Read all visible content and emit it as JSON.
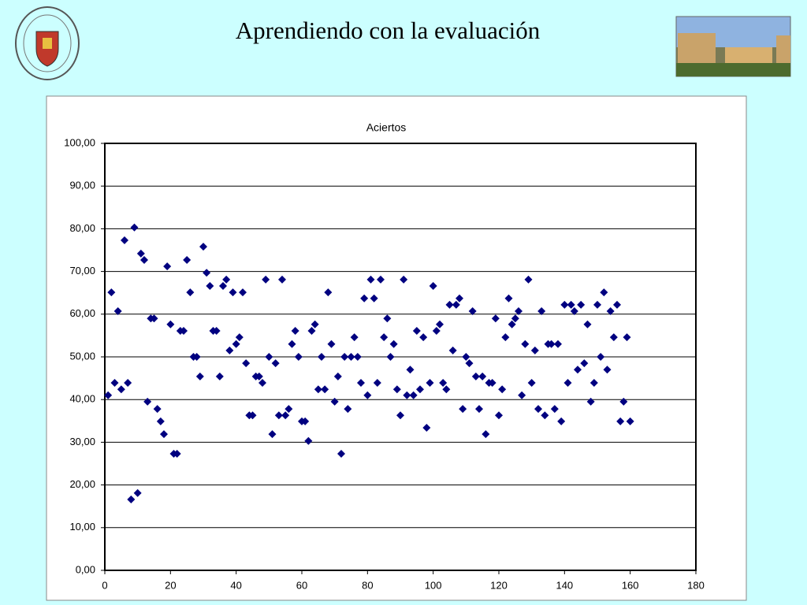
{
  "slide_title": "Aprendiendo con la evaluación",
  "chart_data": {
    "type": "scatter",
    "title": "Aciertos",
    "color": "#000080",
    "grid": true,
    "x": [
      1,
      2,
      3,
      4,
      5,
      6,
      7,
      8,
      9,
      10,
      11,
      12,
      13,
      14,
      15,
      16,
      17,
      18,
      19,
      20,
      21,
      22,
      23,
      24,
      25,
      26,
      27,
      28,
      29,
      30,
      31,
      32,
      33,
      34,
      35,
      36,
      37,
      38,
      39,
      40,
      41,
      42,
      43,
      44,
      45,
      46,
      47,
      48,
      49,
      50,
      51,
      52,
      53,
      54,
      55,
      56,
      57,
      58,
      59,
      60,
      61,
      62,
      63,
      64,
      65,
      66,
      67,
      68,
      69,
      70,
      71,
      72,
      73,
      74,
      75,
      76,
      77,
      78,
      79,
      80,
      81,
      82,
      83,
      84,
      85,
      86,
      87,
      88,
      89,
      90,
      91,
      92,
      93,
      94,
      95,
      96,
      97,
      98,
      99,
      100,
      101,
      102,
      103,
      104,
      105,
      106,
      107,
      108,
      109,
      110,
      111,
      112,
      113,
      114,
      115,
      116,
      117,
      118,
      119,
      120,
      121,
      122,
      123,
      124,
      125,
      126,
      127,
      128,
      129,
      130,
      131,
      132,
      133,
      134,
      135,
      136,
      137,
      138,
      139,
      140,
      141,
      142,
      143,
      144,
      145,
      146,
      147,
      148,
      149,
      150,
      151,
      152,
      153,
      154,
      155,
      156,
      157,
      158,
      159,
      160
    ],
    "values": [
      41.0,
      65.1,
      43.9,
      60.7,
      42.4,
      77.3,
      43.9,
      16.6,
      80.3,
      18.1,
      74.2,
      72.7,
      39.5,
      59.0,
      59.0,
      37.8,
      34.9,
      31.9,
      71.2,
      57.6,
      27.3,
      27.3,
      56.1,
      56.1,
      72.7,
      65.1,
      50.0,
      50.0,
      45.4,
      75.8,
      69.7,
      66.6,
      56.1,
      56.1,
      45.4,
      66.6,
      68.1,
      51.5,
      65.1,
      53.0,
      54.6,
      65.1,
      48.5,
      36.3,
      36.3,
      45.4,
      45.4,
      43.9,
      68.1,
      50.0,
      31.9,
      48.5,
      36.3,
      68.1,
      36.3,
      37.8,
      53.0,
      56.1,
      50.0,
      34.9,
      34.9,
      30.3,
      56.1,
      57.6,
      42.4,
      50.0,
      42.4,
      65.1,
      53.0,
      39.5,
      45.4,
      27.3,
      50.0,
      37.8,
      50.0,
      54.6,
      50.0,
      43.9,
      63.7,
      41.0,
      68.1,
      63.7,
      43.9,
      68.1,
      54.6,
      59.0,
      50.0,
      53.0,
      42.4,
      36.3,
      68.1,
      41.0,
      47.0,
      41.0,
      56.1,
      42.4,
      54.6,
      33.4,
      43.9,
      66.6,
      56.1,
      57.6,
      43.9,
      42.4,
      62.2,
      51.5,
      62.2,
      63.7,
      37.8,
      50.0,
      48.5,
      60.7,
      45.4,
      37.8,
      45.4,
      31.9,
      43.9,
      43.9,
      59.0,
      36.3,
      42.4,
      54.6,
      63.7,
      57.6,
      59.0,
      60.7,
      41.0,
      53.0,
      68.1,
      43.9,
      51.5,
      37.8,
      60.7,
      36.3,
      53.0,
      53.0,
      37.8,
      53.0,
      34.9,
      62.2,
      43.9,
      62.2,
      60.7,
      47.0,
      62.2,
      48.5,
      57.6,
      39.5,
      43.9,
      62.2,
      50.0,
      65.1,
      47.0,
      60.7,
      54.6,
      62.2,
      34.9,
      39.5,
      54.6,
      34.9
    ],
    "xlim": [
      0,
      180
    ],
    "xticks": [
      0,
      20,
      40,
      60,
      80,
      100,
      120,
      140,
      160,
      180
    ],
    "ylim": [
      0,
      100
    ],
    "yticks": [
      {
        "value": 0,
        "label": "0,00"
      },
      {
        "value": 10,
        "label": "10,00"
      },
      {
        "value": 20,
        "label": "20,00"
      },
      {
        "value": 30,
        "label": "30,00"
      },
      {
        "value": 40,
        "label": "40,00"
      },
      {
        "value": 50,
        "label": "50,00"
      },
      {
        "value": 60,
        "label": "60,00"
      },
      {
        "value": 70,
        "label": "70,00"
      },
      {
        "value": 80,
        "label": "80,00"
      },
      {
        "value": 90,
        "label": "90,00"
      },
      {
        "value": 100,
        "label": "100,00"
      }
    ]
  }
}
